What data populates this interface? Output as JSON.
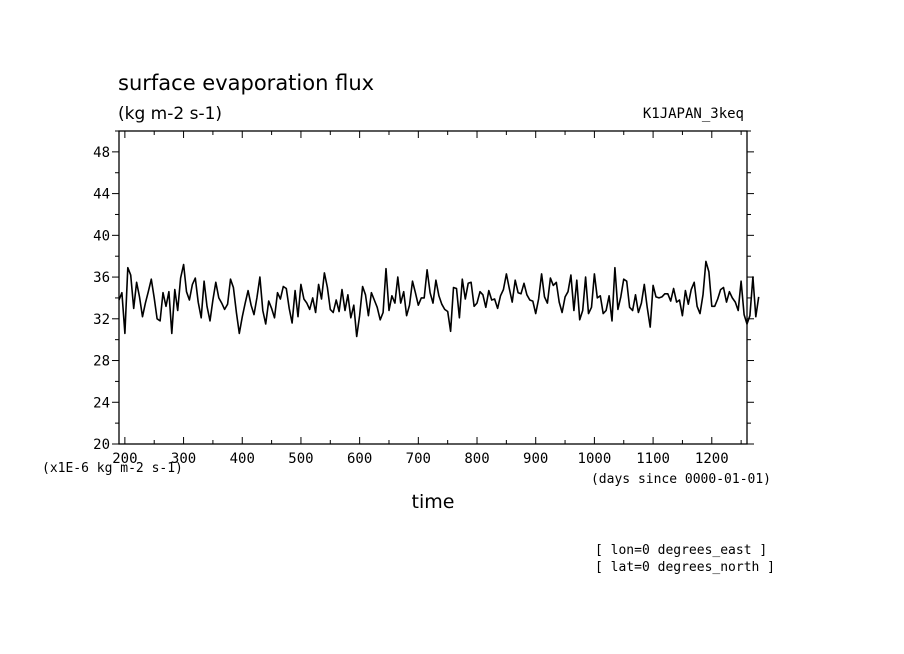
{
  "chart_data": {
    "type": "line",
    "title": "surface evaporation flux",
    "units": "(kg m-2 s-1)",
    "experiment": "K1JAPAN_3keq",
    "xlabel": "time",
    "x_units": "(days since 0000-01-01)",
    "y_scale_note": "(x1E-6 kg m-2 s-1)",
    "xlim": [
      190,
      1260
    ],
    "ylim": [
      20,
      50
    ],
    "x_ticks": [
      200,
      300,
      400,
      500,
      600,
      700,
      800,
      900,
      1000,
      1100,
      1200
    ],
    "y_ticks": [
      20,
      24,
      28,
      32,
      36,
      40,
      44,
      48
    ],
    "grid": false,
    "notes": [
      "[ lon=0 degrees_east ]",
      "[ lat=0 degrees_north ]"
    ],
    "series": [
      {
        "x_start": 190,
        "x_step": 5,
        "values": [
          33.8,
          34.5,
          30.6,
          36.9,
          36.2,
          33.0,
          35.5,
          34.1,
          32.2,
          33.5,
          34.6,
          35.8,
          34.0,
          32.0,
          31.8,
          34.5,
          33.2,
          34.6,
          30.6,
          34.8,
          32.8,
          35.9,
          37.2,
          34.6,
          33.8,
          35.3,
          35.9,
          33.6,
          32.1,
          35.6,
          33.2,
          31.8,
          33.8,
          35.5,
          34.0,
          33.5,
          32.9,
          33.4,
          35.8,
          35.0,
          32.6,
          30.6,
          32.2,
          33.5,
          34.7,
          33.3,
          32.4,
          34.0,
          36.0,
          32.8,
          31.5,
          33.7,
          33.0,
          32.1,
          34.5,
          33.9,
          35.1,
          34.9,
          33.0,
          31.6,
          34.7,
          32.2,
          35.3,
          33.9,
          33.5,
          32.9,
          34.0,
          32.6,
          35.3,
          33.9,
          36.4,
          35.0,
          32.9,
          32.6,
          33.8,
          32.7,
          34.8,
          32.8,
          34.3,
          32.1,
          33.3,
          30.3,
          32.3,
          35.1,
          34.3,
          32.3,
          34.5,
          33.8,
          33.1,
          31.9,
          32.6,
          36.8,
          32.8,
          34.2,
          33.5,
          36.0,
          33.5,
          34.6,
          32.3,
          33.3,
          35.6,
          34.5,
          33.3,
          34.0,
          34.0,
          36.7,
          34.5,
          33.5,
          35.7,
          34.2,
          33.4,
          32.9,
          32.7,
          30.8,
          35.0,
          34.9,
          32.1,
          35.8,
          33.9,
          35.4,
          35.5,
          33.2,
          33.5,
          34.6,
          34.3,
          33.1,
          34.7,
          33.8,
          33.9,
          33.0,
          34.2,
          34.8,
          36.3,
          34.9,
          33.6,
          35.7,
          34.5,
          34.4,
          35.4,
          34.3,
          33.8,
          33.7,
          32.5,
          33.9,
          36.3,
          34.1,
          33.5,
          35.9,
          35.2,
          35.5,
          33.6,
          32.6,
          34.1,
          34.6,
          36.2,
          32.8,
          35.7,
          31.9,
          32.8,
          36.0,
          32.5,
          33.1,
          36.3,
          34.0,
          34.2,
          32.5,
          32.8,
          34.2,
          31.8,
          36.9,
          32.9,
          34.1,
          35.8,
          35.6,
          33.1,
          32.8,
          34.3,
          32.6,
          33.5,
          35.3,
          33.1,
          31.2,
          35.2,
          34.1,
          34.0,
          34.1,
          34.4,
          34.4,
          33.7,
          34.9,
          33.6,
          33.8,
          32.3,
          34.7,
          33.4,
          34.8,
          35.5,
          33.2,
          32.5,
          34.3,
          37.5,
          36.5,
          33.2,
          33.2,
          33.9,
          34.8,
          35.0,
          33.6,
          34.6,
          34.0,
          33.6,
          32.8,
          35.6,
          32.4,
          31.5,
          32.3,
          36.0,
          32.2,
          34.1
        ]
      }
    ]
  }
}
